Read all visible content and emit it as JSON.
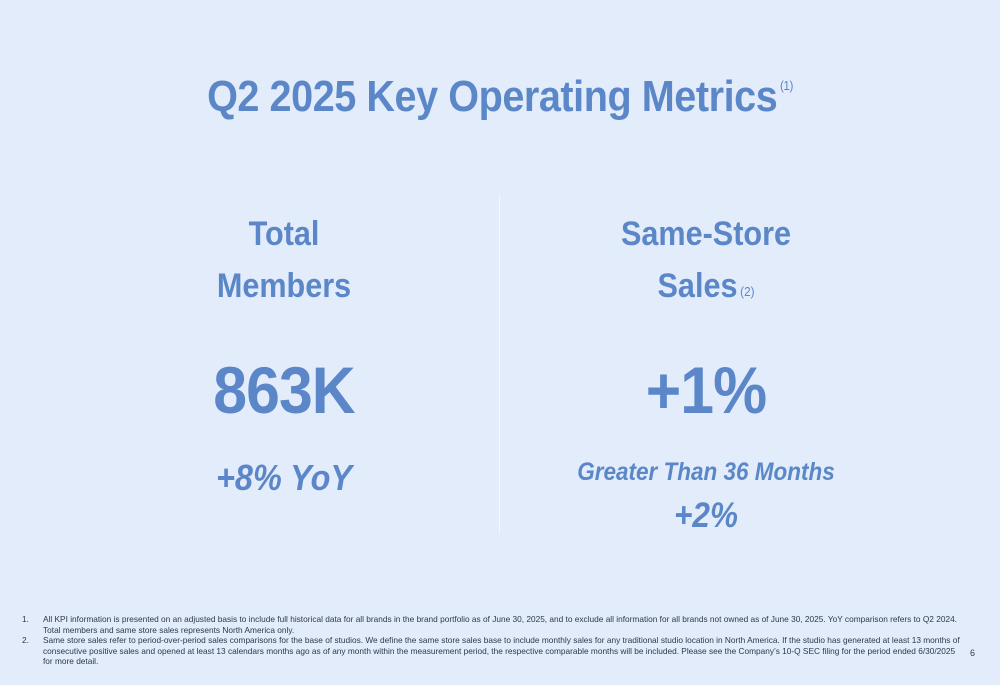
{
  "slide": {
    "title": "Q2 2025 Key Operating Metrics",
    "title_footnote_ref": "(1)",
    "page_number": "6"
  },
  "metrics": {
    "left": {
      "heading_line1": "Total",
      "heading_line2": "Members",
      "value": "863K",
      "subtext": "+8% YoY"
    },
    "right": {
      "heading_line1": "Same-Store",
      "heading_line2": "Sales",
      "heading_footnote_ref": "(2)",
      "value": "+1%",
      "subtext_line1": "Greater Than 36 Months",
      "subtext_line2": "+2%"
    }
  },
  "footnotes": [
    {
      "number": "1.",
      "text": "All KPI information is presented on an adjusted basis to include full historical data for all brands in the brand portfolio as of June 30, 2025, and to exclude all information for all brands not owned as of June 30, 2025. YoY comparison refers to Q2 2024. Total members and same store sales represents North America only."
    },
    {
      "number": "2.",
      "text": "Same store sales refer to period-over-period sales comparisons for the base of studios. We define the same store sales base to include monthly sales for any traditional studio location in North America. If the studio has generated at least 13 months of consecutive positive sales and opened at least 13 calendars months ago as of any month within the measurement period, the respective comparable months will be included. Please see the Company’s 10-Q SEC filing for the period ended 6/30/2025 for more detail."
    }
  ],
  "colors": {
    "background": "#e2ecfa",
    "accent": "#5b87c9",
    "footnote_text": "#2c3a4e"
  }
}
